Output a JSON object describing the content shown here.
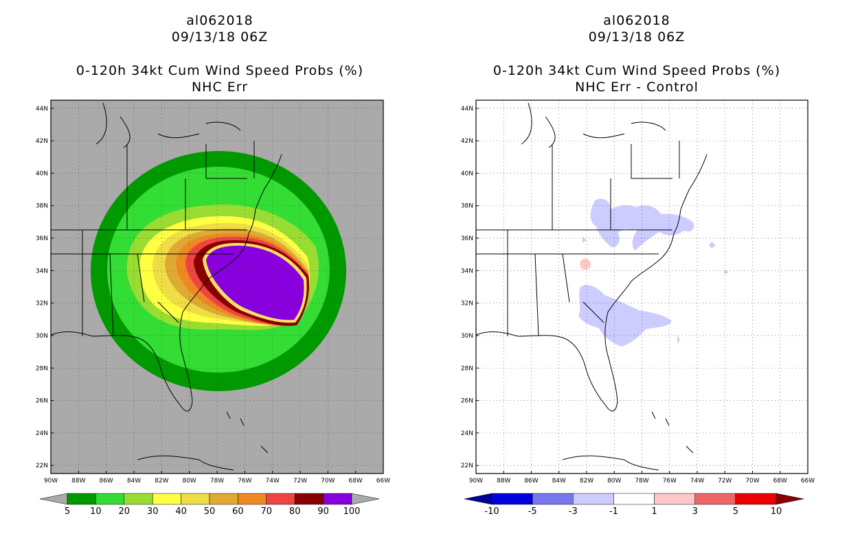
{
  "left_panel": {
    "storm_id": "al062018",
    "datetime": "09/13/18 06Z",
    "product": "0-120h 34kt Cum Wind Speed Probs (%)",
    "subtitle": "NHC Err",
    "colorbar": {
      "labels": [
        "5",
        "10",
        "20",
        "30",
        "40",
        "50",
        "60",
        "70",
        "80",
        "90",
        "100"
      ],
      "colors": [
        "#009900",
        "#33dd33",
        "#99dd33",
        "#ffff44",
        "#eedd44",
        "#ddaa33",
        "#ee8822",
        "#ee4444",
        "#880000",
        "#8800dd"
      ],
      "under_color": "#aaaaaa",
      "over_color": "#aaaaaa"
    },
    "background_color": "#aaaaaa"
  },
  "right_panel": {
    "storm_id": "al062018",
    "datetime": "09/13/18 06Z",
    "product": "0-120h 34kt Cum Wind Speed Probs (%)",
    "subtitle": "NHC Err - Control",
    "colorbar": {
      "labels": [
        "-10",
        "-5",
        "-3",
        "-1",
        "1",
        "3",
        "5",
        "10"
      ],
      "colors": [
        "#0000dd",
        "#7777ee",
        "#ccccff",
        "#ffffff",
        "#ffc8c8",
        "#ee6666",
        "#ee0000"
      ],
      "under_color": "#000099",
      "over_color": "#880000"
    },
    "background_color": "#ffffff"
  },
  "axes": {
    "lon_labels": [
      "90W",
      "88W",
      "86W",
      "84W",
      "82W",
      "80W",
      "78W",
      "76W",
      "74W",
      "72W",
      "70W",
      "68W",
      "66W"
    ],
    "lat_labels": [
      "22N",
      "24N",
      "26N",
      "28N",
      "30N",
      "32N",
      "34N",
      "36N",
      "38N",
      "40N",
      "42N",
      "44N"
    ],
    "lon_range": [
      -90,
      -66
    ],
    "lat_range": [
      21.5,
      44.5
    ]
  },
  "colors": {
    "diff_negative": "#ccccff",
    "diff_positive": "#ffc8c8"
  }
}
